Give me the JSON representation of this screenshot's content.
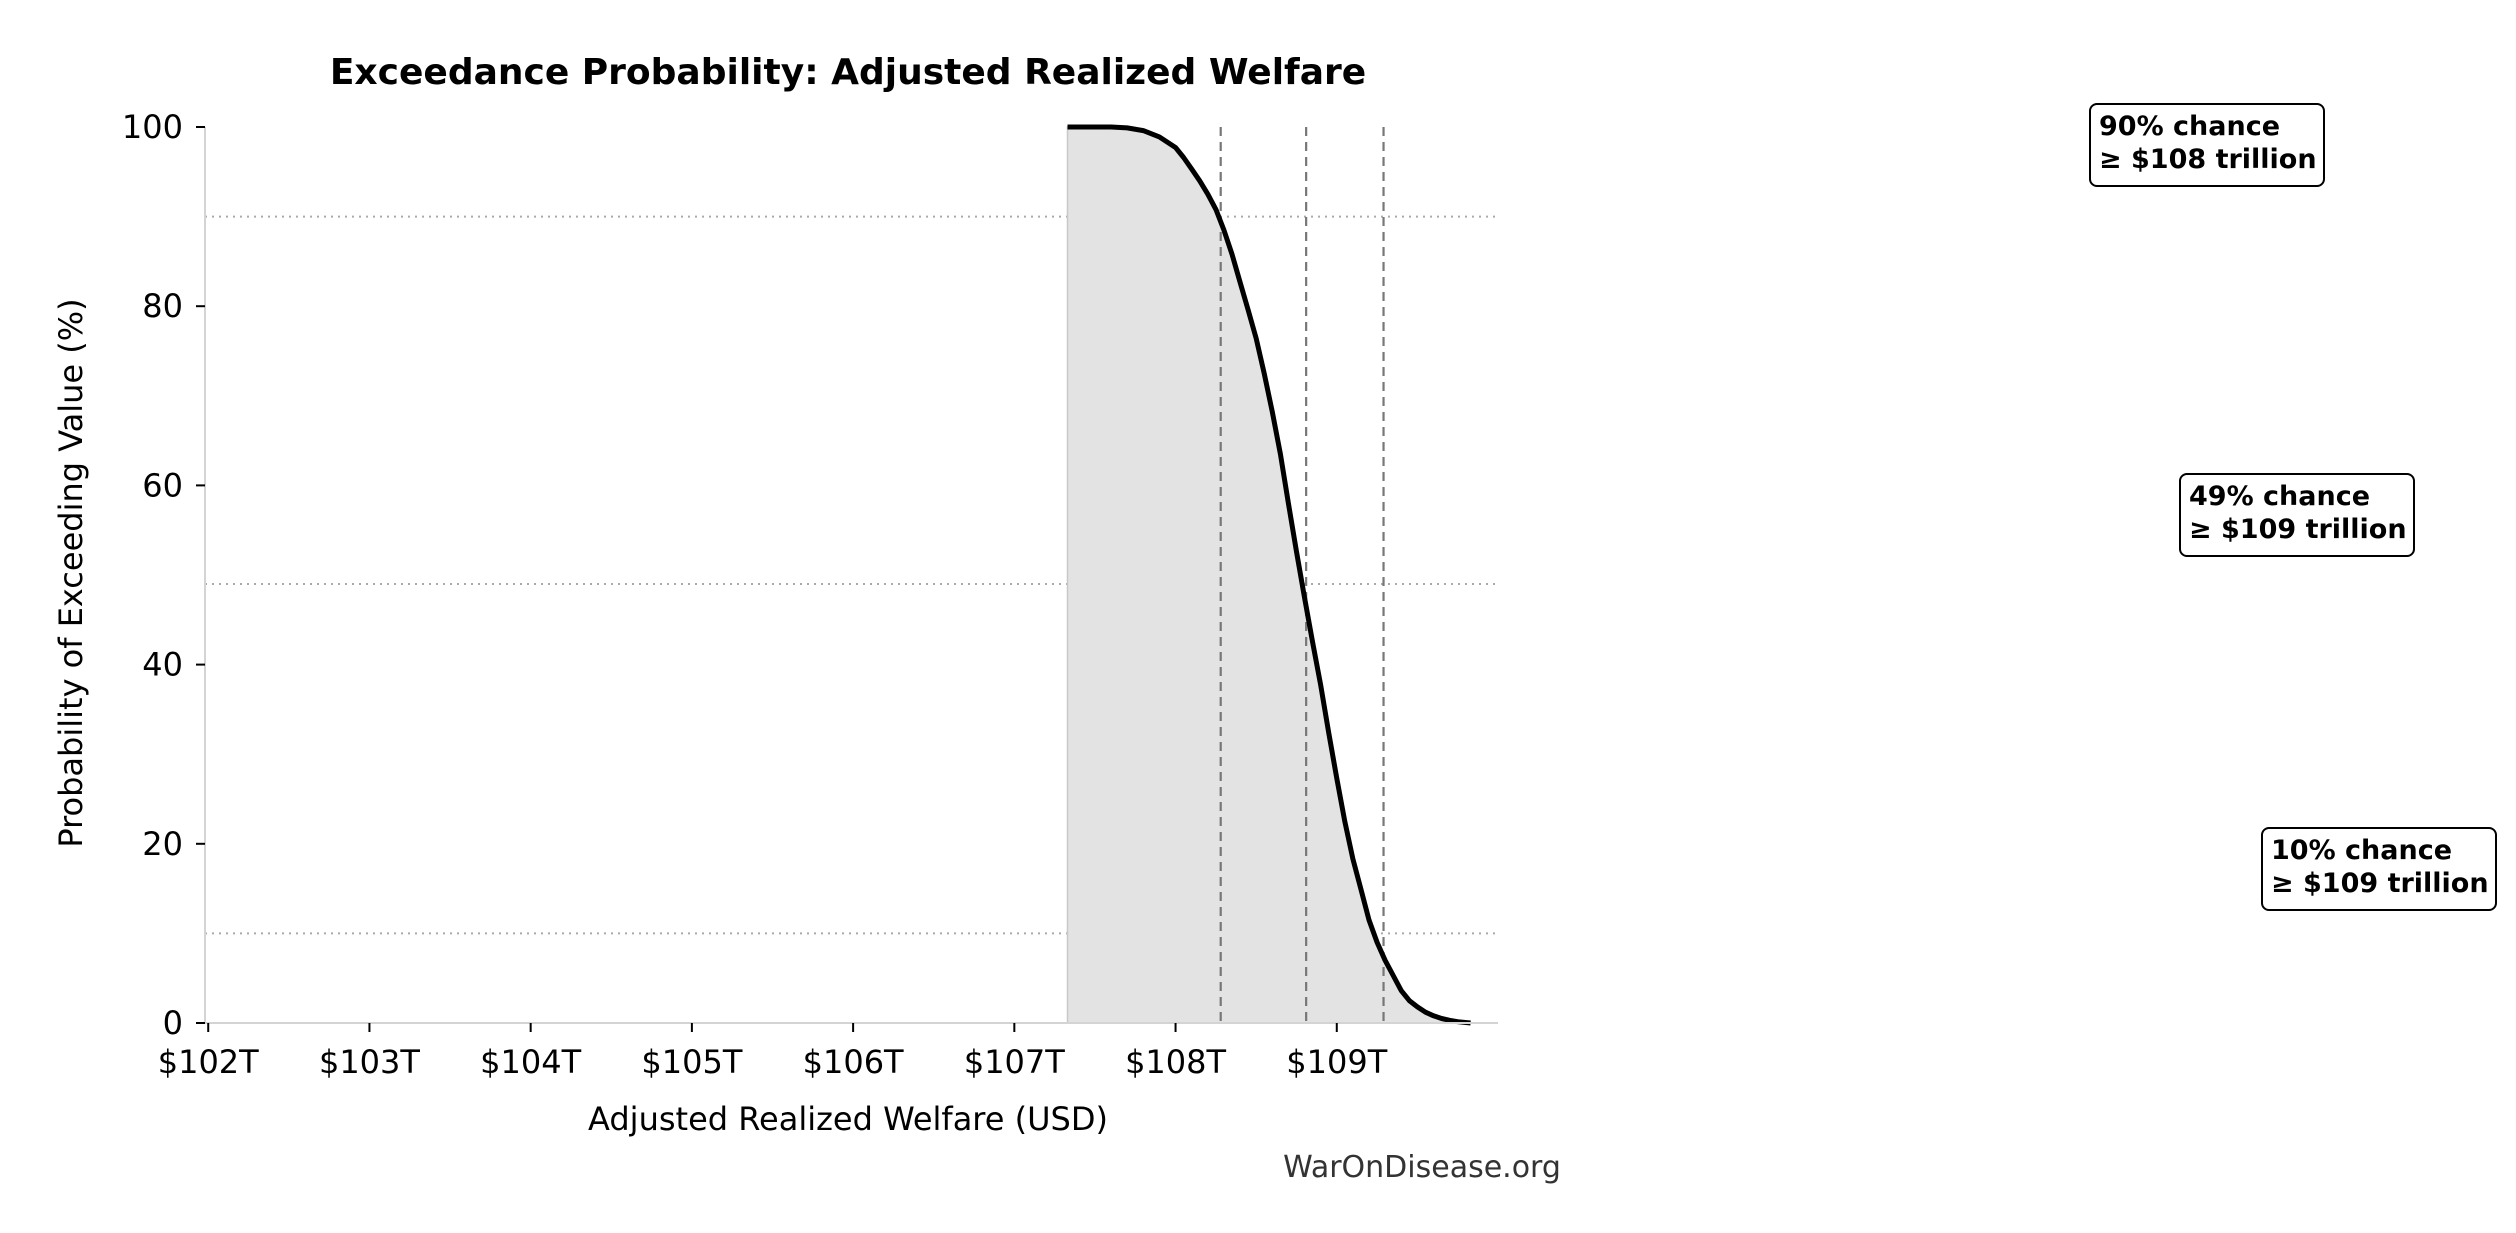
{
  "chart_data": {
    "type": "area",
    "title": "Exceedance Probability: Adjusted Realized Welfare",
    "xlabel": "Adjusted Realized Welfare (USD)",
    "ylabel": "Probability of Exceeding Value (%)",
    "xlim": [
      101.98,
      110.0
    ],
    "ylim": [
      0,
      100
    ],
    "x_ticks": [
      {
        "value": 102,
        "label": "$102T"
      },
      {
        "value": 103,
        "label": "$103T"
      },
      {
        "value": 104,
        "label": "$104T"
      },
      {
        "value": 105,
        "label": "$105T"
      },
      {
        "value": 106,
        "label": "$106T"
      },
      {
        "value": 107,
        "label": "$107T"
      },
      {
        "value": 108,
        "label": "$108T"
      },
      {
        "value": 109,
        "label": "$109T"
      }
    ],
    "y_ticks": [
      {
        "value": 0,
        "label": "0"
      },
      {
        "value": 20,
        "label": "20"
      },
      {
        "value": 40,
        "label": "40"
      },
      {
        "value": 60,
        "label": "60"
      },
      {
        "value": 80,
        "label": "80"
      },
      {
        "value": 100,
        "label": "100"
      }
    ],
    "grid": false,
    "series": [
      {
        "x": [
          107.33,
          107.5,
          107.6,
          107.7,
          107.8,
          107.9,
          108.0,
          108.05,
          108.1,
          108.15,
          108.2,
          108.25,
          108.3,
          108.35,
          108.4,
          108.45,
          108.5,
          108.55,
          108.6,
          108.65,
          108.7,
          108.75,
          108.8,
          108.85,
          108.9,
          108.95,
          109.0,
          109.05,
          109.1,
          109.15,
          109.2,
          109.25,
          109.3,
          109.35,
          109.4,
          109.45,
          109.5,
          109.55,
          109.6,
          109.65,
          109.7,
          109.75,
          109.83
        ],
        "values": [
          100,
          100,
          100,
          99.9,
          99.6,
          98.9,
          97.7,
          96.6,
          95.3,
          94.0,
          92.5,
          90.8,
          88.5,
          85.8,
          82.7,
          79.6,
          76.4,
          72.5,
          68.2,
          63.5,
          58.0,
          52.6,
          47.5,
          42.5,
          37.7,
          32.4,
          27.3,
          22.5,
          18.3,
          14.9,
          11.5,
          9.0,
          7.0,
          5.3,
          3.6,
          2.5,
          1.8,
          1.2,
          0.8,
          0.5,
          0.3,
          0.15,
          0.0
        ],
        "fill": "#e3e3e3",
        "color": "#000000"
      }
    ],
    "reference_lines": [
      {
        "axis": "x",
        "value": 108.28,
        "style": "dashed",
        "color": "#777777"
      },
      {
        "axis": "x",
        "value": 108.81,
        "style": "dashed",
        "color": "#777777"
      },
      {
        "axis": "x",
        "value": 109.29,
        "style": "dashed",
        "color": "#777777"
      },
      {
        "axis": "y",
        "value": 90,
        "style": "dotted",
        "color": "#aaaaaa"
      },
      {
        "axis": "y",
        "value": 49,
        "style": "dotted",
        "color": "#aaaaaa"
      },
      {
        "axis": "y",
        "value": 10,
        "style": "dotted",
        "color": "#aaaaaa"
      }
    ],
    "annotations": [
      {
        "line1": "90% chance",
        "line2": "≥ $108 trillion",
        "y": 90
      },
      {
        "line1": "49% chance",
        "line2": "≥ $109 trillion",
        "y": 49
      },
      {
        "line1": "10% chance",
        "line2": "≥ $109 trillion",
        "y": 10
      }
    ],
    "credit": "WarOnDisease.org"
  }
}
